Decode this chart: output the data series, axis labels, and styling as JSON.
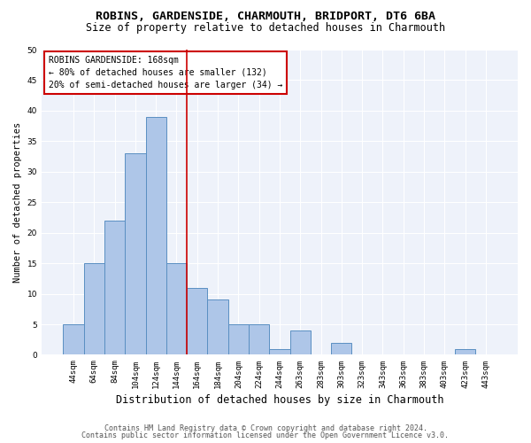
{
  "title1": "ROBINS, GARDENSIDE, CHARMOUTH, BRIDPORT, DT6 6BA",
  "title2": "Size of property relative to detached houses in Charmouth",
  "xlabel": "Distribution of detached houses by size in Charmouth",
  "ylabel": "Number of detached properties",
  "bar_labels": [
    "44sqm",
    "64sqm",
    "84sqm",
    "104sqm",
    "124sqm",
    "144sqm",
    "164sqm",
    "184sqm",
    "204sqm",
    "224sqm",
    "244sqm",
    "263sqm",
    "283sqm",
    "303sqm",
    "323sqm",
    "343sqm",
    "363sqm",
    "383sqm",
    "403sqm",
    "423sqm",
    "443sqm"
  ],
  "bar_heights": [
    5,
    15,
    22,
    33,
    39,
    15,
    11,
    9,
    5,
    5,
    1,
    4,
    0,
    2,
    0,
    0,
    0,
    0,
    0,
    1,
    0
  ],
  "bar_color": "#aec6e8",
  "bar_edge_color": "#5a8fc2",
  "vline_x_idx": 6,
  "vline_color": "#cc0000",
  "annotation_text": "ROBINS GARDENSIDE: 168sqm\n← 80% of detached houses are smaller (132)\n20% of semi-detached houses are larger (34) →",
  "annotation_box_color": "#ffffff",
  "annotation_box_edge": "#cc0000",
  "ylim": [
    0,
    50
  ],
  "yticks": [
    0,
    5,
    10,
    15,
    20,
    25,
    30,
    35,
    40,
    45,
    50
  ],
  "bg_color": "#eef2fa",
  "fig_bg_color": "#ffffff",
  "footer1": "Contains HM Land Registry data © Crown copyright and database right 2024.",
  "footer2": "Contains public sector information licensed under the Open Government Licence v3.0.",
  "title_fontsize": 9.5,
  "subtitle_fontsize": 8.5,
  "xlabel_fontsize": 8.5,
  "ylabel_fontsize": 7.5,
  "tick_fontsize": 6.5,
  "annotation_fontsize": 7.0,
  "footer_fontsize": 6.0
}
